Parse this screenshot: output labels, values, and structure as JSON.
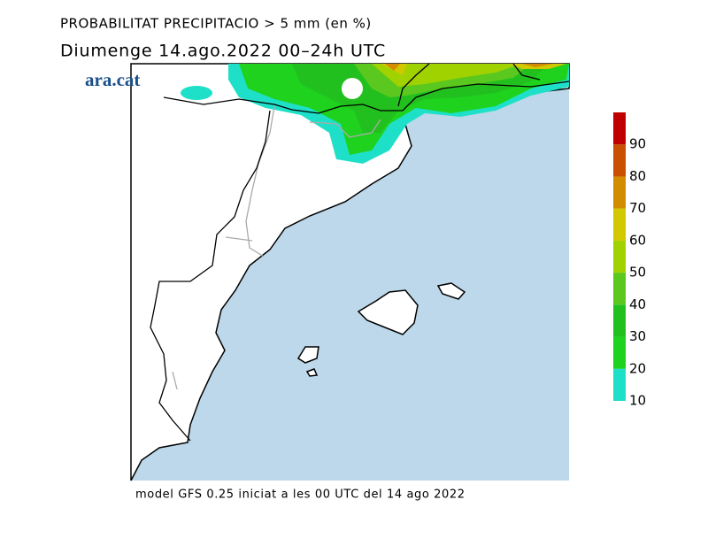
{
  "header": {
    "title": "PROBABILITAT PRECIPITACIO > 5 mm (en %)",
    "subtitle": "Diumenge  14.ago.2022 00–24h UTC"
  },
  "logo": "ara.cat",
  "colorbar": {
    "lim": [
      10,
      100
    ],
    "ticks": [
      10,
      20,
      30,
      40,
      50,
      60,
      70,
      80,
      90
    ],
    "colors": [
      "#1ee0c8",
      "#1ed21e",
      "#22c01e",
      "#5ac81e",
      "#a0d200",
      "#d2c800",
      "#d28c00",
      "#c85000",
      "#c00000"
    ]
  },
  "footer": "model GFS 0.25 iniciat a les 00 UTC del 14 ago 2022"
}
